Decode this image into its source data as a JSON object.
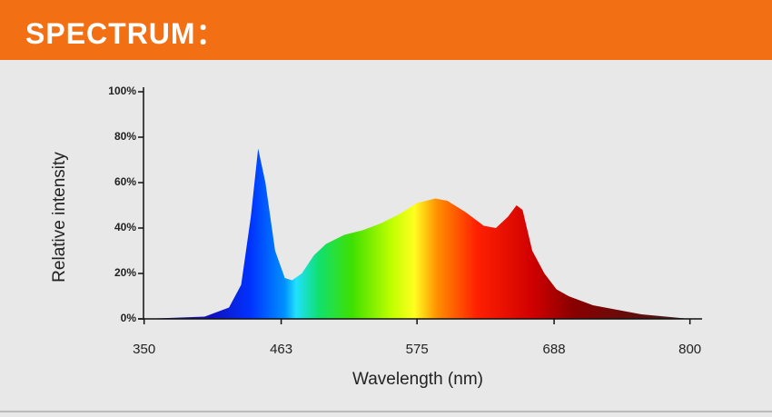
{
  "header": {
    "title": "SPECTRUM："
  },
  "chart_data": {
    "type": "area",
    "ylabel": "Relative intensity",
    "xlabel": "Wavelength (nm)",
    "x": [
      350,
      400,
      420,
      430,
      438,
      444,
      450,
      458,
      466,
      472,
      480,
      490,
      500,
      515,
      530,
      545,
      560,
      575,
      590,
      600,
      615,
      630,
      640,
      650,
      657,
      662,
      670,
      680,
      690,
      700,
      720,
      740,
      760,
      780,
      800
    ],
    "values": [
      0,
      1,
      5,
      15,
      45,
      75,
      60,
      30,
      18,
      17,
      20,
      28,
      33,
      37,
      39,
      42,
      46,
      51,
      53,
      52,
      47,
      41,
      40,
      45,
      50,
      48,
      30,
      20,
      13,
      10,
      6,
      4,
      2,
      1,
      0
    ],
    "xlim": [
      345,
      810
    ],
    "xticks": [
      350,
      463,
      575,
      688,
      800
    ],
    "ylim": [
      0,
      100
    ],
    "yticks": [
      {
        "value": 0,
        "label": "0%"
      },
      {
        "value": 20,
        "label": "20%"
      },
      {
        "value": 40,
        "label": "40%"
      },
      {
        "value": 60,
        "label": "60%"
      },
      {
        "value": 80,
        "label": "80%"
      },
      {
        "value": 100,
        "label": "100%"
      }
    ]
  }
}
